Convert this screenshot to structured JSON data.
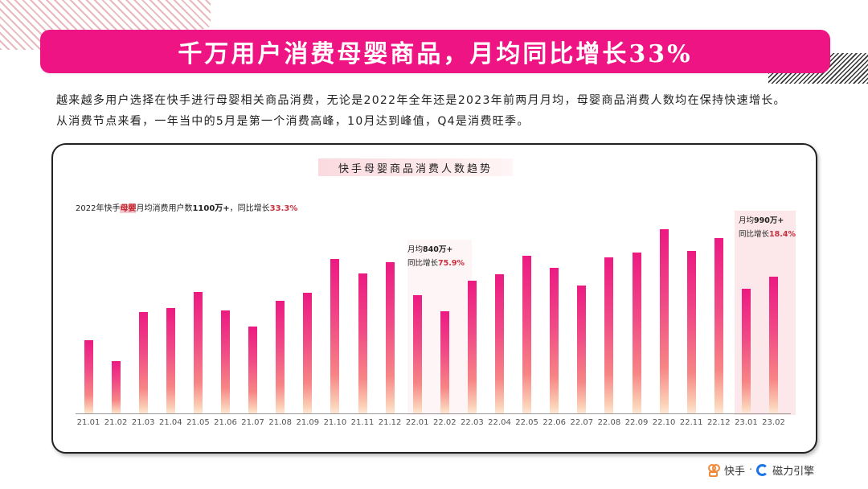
{
  "header": {
    "title": "千万用户消费母婴商品，月均同比增长33%"
  },
  "description": {
    "line1": "越来越多用户选择在快手进行母婴相关商品消费，无论是2022年全年还是2023年前两月月均，母婴商品消费人数均在保持快速增长。",
    "line2": "从消费节点来看，一年当中的5月是第一个消费高峰，10月达到峰值，Q4是消费旺季。"
  },
  "summary": {
    "prefix": "2022年快手",
    "highlight": "母婴",
    "middle": "月均消费用户数",
    "bold_value": "1100万+",
    "sep": "，同比增长",
    "growth": "33.3%"
  },
  "annotations": [
    {
      "label_prefix": "月均",
      "value": "840万+",
      "growth_label": "同比增长",
      "growth": "75.9%"
    },
    {
      "label_prefix": "月均",
      "value": "990万+",
      "growth_label": "同比增长",
      "growth": "18.4%"
    }
  ],
  "footer": {
    "brand1": "快手",
    "separator": "·",
    "brand2": "磁力引擎"
  },
  "colors": {
    "accent": "#ef1483",
    "bar_top": "#ec1a82",
    "bar_bottom": "#fde8d6",
    "growth_red": "#c8303d"
  },
  "chart_data": {
    "type": "bar",
    "title": "快手母婴商品消费人数趋势",
    "xlabel": "",
    "ylabel": "",
    "grid": false,
    "categories": [
      "21.01",
      "21.02",
      "21.03",
      "21.04",
      "21.05",
      "21.06",
      "21.07",
      "21.08",
      "21.09",
      "21.10",
      "21.11",
      "21.12",
      "22.01",
      "22.02",
      "22.03",
      "22.04",
      "22.05",
      "22.06",
      "22.07",
      "22.08",
      "22.09",
      "22.10",
      "22.11",
      "22.12",
      "23.01",
      "23.02"
    ],
    "values": [
      91,
      65,
      126,
      131,
      151,
      128,
      108,
      140,
      150,
      192,
      174,
      188,
      147,
      127,
      165,
      173,
      196,
      181,
      159,
      194,
      200,
      229,
      202,
      218,
      155,
      170
    ],
    "value_note": "relative bar heights (no y-axis shown)",
    "ylim": [
      0,
      240
    ],
    "annotations": [
      "2022年快手母婴月均消费用户数1100万+，同比增长33.3%",
      "22.01–22.02: 月均840万+ 同比增长75.9%",
      "23.01–23.02: 月均990万+ 同比增长18.4%"
    ]
  }
}
